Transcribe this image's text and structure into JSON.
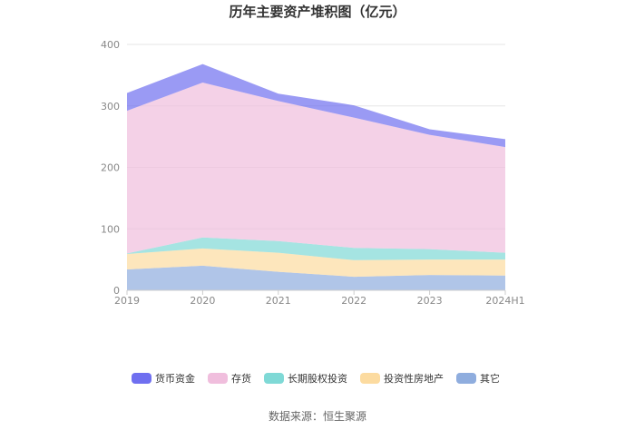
{
  "chart_data": {
    "type": "area",
    "stacked": true,
    "title": "历年主要资产堆积图（亿元）",
    "x": [
      "2019",
      "2020",
      "2021",
      "2022",
      "2023",
      "2024H1"
    ],
    "ylim": [
      0,
      400
    ],
    "yticks": [
      0,
      100,
      200,
      300,
      400
    ],
    "grid": true,
    "legend_position": "bottom",
    "series": [
      {
        "name": "货币资金",
        "color": "#6f6ff0",
        "values": [
          29,
          30,
          12,
          20,
          9,
          13
        ]
      },
      {
        "name": "存货",
        "color": "#f0bedd",
        "values": [
          232,
          252,
          228,
          212,
          186,
          172
        ]
      },
      {
        "name": "长期股权投资",
        "color": "#7fd9d6",
        "values": [
          1,
          18,
          19,
          20,
          17,
          11
        ]
      },
      {
        "name": "投资性房地产",
        "color": "#fcdba0",
        "values": [
          25,
          28,
          31,
          27,
          25,
          26
        ]
      },
      {
        "name": "其它",
        "color": "#8fadde",
        "values": [
          34,
          40,
          30,
          22,
          25,
          24
        ]
      }
    ]
  },
  "source": "数据来源：恒生聚源"
}
